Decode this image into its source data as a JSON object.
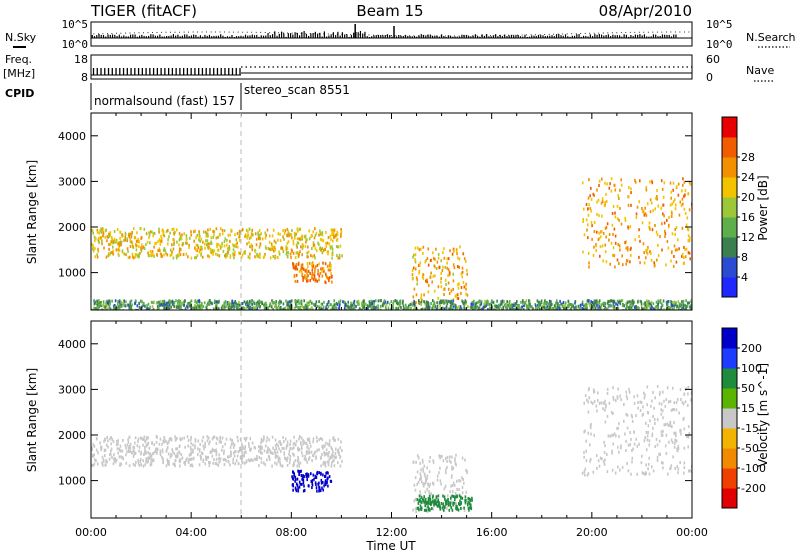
{
  "header": {
    "radar": "TIGER (fitACF)",
    "beam": "Beam 15",
    "date": "08/Apr/2010"
  },
  "left_labels": {
    "nsky": "N.Sky",
    "freq": "Freq.",
    "freq_unit": "[MHz]",
    "cpid": "CPID"
  },
  "right_labels": {
    "nsearch": "N.Search",
    "nave": "Nave"
  },
  "cpid_labels": [
    {
      "text": "normalsound (fast) 157",
      "start_hour": 0
    },
    {
      "text": "stereo_scan 8551",
      "start_hour": 6
    }
  ],
  "colors": {
    "power_scale": [
      "#1e28ff",
      "#2a4bd2",
      "#3b7e4f",
      "#5fae4c",
      "#9cc838",
      "#f2c400",
      "#f29000",
      "#f25c00",
      "#e60000"
    ],
    "velocity_scale": [
      "#e00000",
      "#f04000",
      "#f28a00",
      "#f2b400",
      "#c8c8c8",
      "#5ab400",
      "#1e8c3c",
      "#1e3cff",
      "#0000c8"
    ]
  },
  "chart_data": [
    {
      "type": "line",
      "title": "",
      "ylabel_left": "N.Sky",
      "ylabel_right": "N.Search",
      "yticks_left": [
        "10^5",
        "10^0"
      ],
      "yticks_right": [
        "10^5",
        "10^0"
      ],
      "xlim": [
        0,
        24
      ]
    },
    {
      "type": "line",
      "ylabel_left": "Freq. [MHz]",
      "ylabel_right": "Nave",
      "yticks_left": [
        "18",
        "8"
      ],
      "yticks_right": [
        "60",
        "0"
      ],
      "xlim": [
        0,
        24
      ]
    },
    {
      "type": "heatmap",
      "ylabel": "Slant Range [km]",
      "ylim": [
        180,
        4500
      ],
      "yticks": [
        "1000",
        "2000",
        "3000",
        "4000"
      ],
      "colorbar_label": "Power [dB]",
      "colorbar_ticks": [
        "4",
        "8",
        "12",
        "16",
        "20",
        "24",
        "28"
      ],
      "xlim": [
        0,
        24
      ],
      "echo_regions": [
        {
          "start_hour": 0.0,
          "end_hour": 10.0,
          "range_km": [
            1350,
            2000
          ],
          "value": 22
        },
        {
          "start_hour": 8.0,
          "end_hour": 9.6,
          "range_km": [
            800,
            1250
          ],
          "value": 27
        },
        {
          "start_hour": 12.8,
          "end_hour": 15.0,
          "range_km": [
            350,
            1600
          ],
          "value": 24
        },
        {
          "start_hour": 19.6,
          "end_hour": 24.0,
          "range_km": [
            1150,
            3100
          ],
          "value": 25
        },
        {
          "start_hour": 0.0,
          "end_hour": 24.0,
          "range_km": [
            180,
            420
          ],
          "value": 12
        }
      ]
    },
    {
      "type": "heatmap",
      "ylabel": "Slant Range [km]",
      "xlabel": "Time UT",
      "ylim": [
        180,
        4500
      ],
      "yticks": [
        "1000",
        "2000",
        "3000",
        "4000"
      ],
      "xticks": [
        "00:00",
        "04:00",
        "08:00",
        "12:00",
        "16:00",
        "20:00",
        "00:00"
      ],
      "colorbar_label": "Velocity [m s^-1]",
      "colorbar_ticks": [
        "-200",
        "-100",
        "-50",
        "-15",
        "15",
        "50",
        "100",
        "200"
      ],
      "xlim": [
        0,
        24
      ],
      "echo_regions": [
        {
          "start_hour": 0.0,
          "end_hour": 10.0,
          "range_km": [
            1350,
            2000
          ],
          "value": 0
        },
        {
          "start_hour": 8.0,
          "end_hour": 9.6,
          "range_km": [
            800,
            1250
          ],
          "value": 220
        },
        {
          "start_hour": 12.8,
          "end_hour": 15.0,
          "range_km": [
            350,
            1600
          ],
          "value": 0
        },
        {
          "start_hour": 13.0,
          "end_hour": 15.2,
          "range_km": [
            380,
            700
          ],
          "value": 60
        },
        {
          "start_hour": 19.6,
          "end_hour": 24.0,
          "range_km": [
            1150,
            3100
          ],
          "value": 0
        }
      ]
    }
  ]
}
